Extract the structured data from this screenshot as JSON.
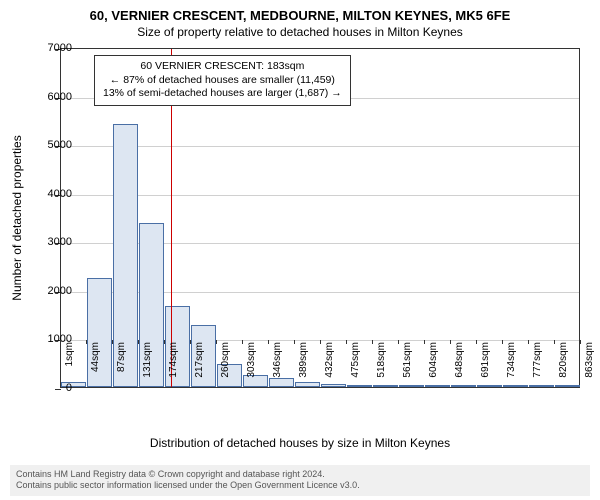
{
  "chart": {
    "type": "histogram",
    "title_main": "60, VERNIER CRESCENT, MEDBOURNE, MILTON KEYNES, MK5 6FE",
    "title_sub": "Size of property relative to detached houses in Milton Keynes",
    "y_axis_title": "Number of detached properties",
    "x_axis_title": "Distribution of detached houses by size in Milton Keynes",
    "background_color": "#ffffff",
    "grid_color": "#d0d0d0",
    "bar_fill": "#dde6f2",
    "bar_stroke": "#4a6fa5",
    "ref_line_color": "#cc0000",
    "ref_value_sqm": 183,
    "ylim": [
      0,
      7000
    ],
    "ytick_step": 1000,
    "yticks": [
      0,
      1000,
      2000,
      3000,
      4000,
      5000,
      6000,
      7000
    ],
    "x_start": 1,
    "x_bin_width": 43,
    "x_labels": [
      "1sqm",
      "44sqm",
      "87sqm",
      "131sqm",
      "174sqm",
      "217sqm",
      "260sqm",
      "303sqm",
      "346sqm",
      "389sqm",
      "432sqm",
      "475sqm",
      "518sqm",
      "561sqm",
      "604sqm",
      "648sqm",
      "691sqm",
      "734sqm",
      "777sqm",
      "820sqm",
      "863sqm"
    ],
    "bars": [
      110,
      2250,
      5420,
      3380,
      1660,
      1280,
      480,
      240,
      180,
      100,
      70,
      50,
      30,
      20,
      15,
      10,
      8,
      6,
      4,
      2
    ],
    "annotation": {
      "line1": "60 VERNIER CRESCENT: 183sqm",
      "line2": "← 87% of detached houses are smaller (11,459)",
      "line3": "13% of semi-detached houses are larger (1,687) →"
    },
    "title_fontsize": 13,
    "sub_fontsize": 12,
    "axis_label_fontsize": 12,
    "tick_fontsize": 11
  },
  "footer": {
    "line1": "Contains HM Land Registry data © Crown copyright and database right 2024.",
    "line2": "Contains public sector information licensed under the Open Government Licence v3.0."
  }
}
